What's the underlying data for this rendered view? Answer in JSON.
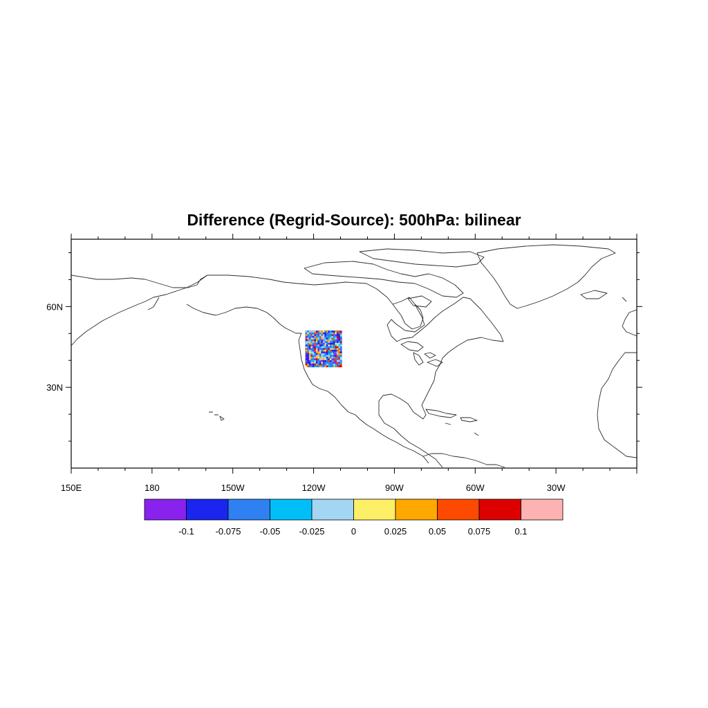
{
  "figure": {
    "title": "Difference (Regrid-Source): 500hPa: bilinear"
  },
  "map": {
    "projection": "cylindrical-equidistant",
    "lon_range": [
      150,
      360
    ],
    "lat_range": [
      0,
      85
    ],
    "frame_color": "#000000",
    "coastline_color": "#2b2b2b",
    "x_ticks": [
      {
        "lon": 150,
        "label": "150E"
      },
      {
        "lon": 180,
        "label": "180"
      },
      {
        "lon": 210,
        "label": "150W"
      },
      {
        "lon": 240,
        "label": "120W"
      },
      {
        "lon": 270,
        "label": "90W"
      },
      {
        "lon": 300,
        "label": "60W"
      },
      {
        "lon": 330,
        "label": "30W"
      }
    ],
    "y_ticks": [
      {
        "lat": 30,
        "label": "30N"
      },
      {
        "lat": 60,
        "label": "60N"
      }
    ],
    "data_region": {
      "lon_range": [
        237,
        250
      ],
      "lat_range": [
        38,
        51
      ]
    }
  },
  "colorbar": {
    "colors": [
      "#8a22ee",
      "#1a26ee",
      "#2f80f0",
      "#00bff8",
      "#a3d6f3",
      "#fdef66",
      "#fea800",
      "#fe4a00",
      "#dd0000",
      "#feb2b2"
    ],
    "labels": [
      "-0.1",
      "-0.075",
      "-0.05",
      "-0.025",
      "0",
      "0.025",
      "0.05",
      "0.075",
      "0.1"
    ]
  }
}
